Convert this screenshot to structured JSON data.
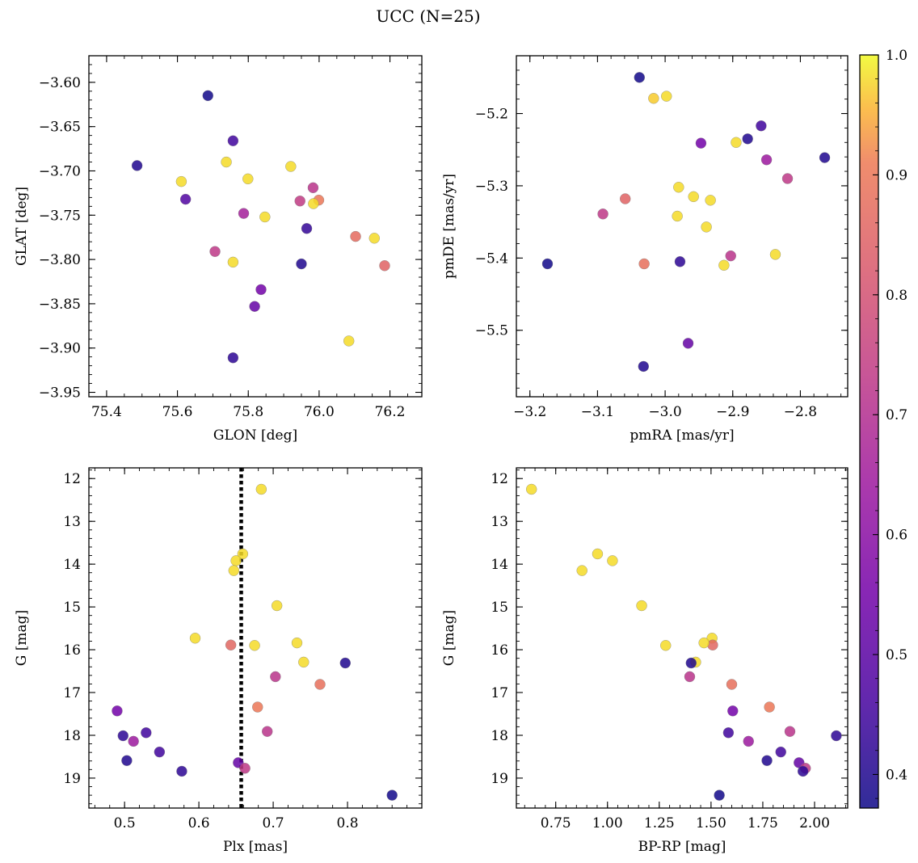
{
  "figure": {
    "title": "UCC (N=25)"
  },
  "colorbar": {
    "range": [
      0.372,
      1.0
    ],
    "ticks": [
      0.4,
      0.5,
      0.6,
      0.7,
      0.8,
      0.9,
      1.0
    ],
    "tick_labels": [
      "0.4",
      "0.5",
      "0.6",
      "0.7",
      "0.8",
      "0.9",
      "1.0"
    ],
    "colormap": "plasma"
  },
  "chart_data": [
    {
      "type": "scatter",
      "xlabel": "GLON [deg]",
      "ylabel": "GLAT [deg]",
      "xlim": [
        75.35,
        76.29
      ],
      "ylim": [
        -3.955,
        -3.57
      ],
      "y_inverted": false,
      "xticks": [
        75.4,
        75.6,
        75.8,
        76.0,
        76.2
      ],
      "xtick_labels": [
        "75.4",
        "75.6",
        "75.8",
        "76.0",
        "76.2"
      ],
      "yticks": [
        -3.6,
        -3.65,
        -3.7,
        -3.75,
        -3.8,
        -3.85,
        -3.9,
        -3.95
      ],
      "ytick_labels": [
        "−3.60",
        "−3.65",
        "−3.70",
        "−3.75",
        "−3.80",
        "−3.85",
        "−3.90",
        "−3.95"
      ],
      "points": [
        {
          "x": 75.686,
          "y": -3.615,
          "c": 0.38
        },
        {
          "x": 75.757,
          "y": -3.666,
          "c": 0.45
        },
        {
          "x": 75.486,
          "y": -3.694,
          "c": 0.4
        },
        {
          "x": 75.738,
          "y": -3.69,
          "c": 0.98
        },
        {
          "x": 75.611,
          "y": -3.712,
          "c": 0.98
        },
        {
          "x": 75.799,
          "y": -3.709,
          "c": 0.98
        },
        {
          "x": 75.92,
          "y": -3.695,
          "c": 0.98
        },
        {
          "x": 75.623,
          "y": -3.732,
          "c": 0.48
        },
        {
          "x": 75.983,
          "y": -3.719,
          "c": 0.72
        },
        {
          "x": 75.946,
          "y": -3.734,
          "c": 0.74
        },
        {
          "x": 75.999,
          "y": -3.733,
          "c": 0.9
        },
        {
          "x": 75.984,
          "y": -3.737,
          "c": 0.98
        },
        {
          "x": 75.787,
          "y": -3.748,
          "c": 0.66
        },
        {
          "x": 75.847,
          "y": -3.752,
          "c": 0.98
        },
        {
          "x": 75.965,
          "y": -3.765,
          "c": 0.43
        },
        {
          "x": 76.103,
          "y": -3.774,
          "c": 0.87
        },
        {
          "x": 76.156,
          "y": -3.776,
          "c": 0.98
        },
        {
          "x": 75.706,
          "y": -3.791,
          "c": 0.73
        },
        {
          "x": 75.757,
          "y": -3.803,
          "c": 0.98
        },
        {
          "x": 75.95,
          "y": -3.805,
          "c": 0.4
        },
        {
          "x": 76.185,
          "y": -3.807,
          "c": 0.85
        },
        {
          "x": 75.836,
          "y": -3.834,
          "c": 0.55
        },
        {
          "x": 75.818,
          "y": -3.853,
          "c": 0.52
        },
        {
          "x": 76.084,
          "y": -3.892,
          "c": 0.98
        },
        {
          "x": 75.757,
          "y": -3.911,
          "c": 0.42
        }
      ]
    },
    {
      "type": "scatter",
      "xlabel": "pmRA [mas/yr]",
      "ylabel": "pmDE [mas/yr]",
      "xlim": [
        -3.22,
        -2.73
      ],
      "ylim": [
        -5.592,
        -5.12
      ],
      "y_inverted": false,
      "xticks": [
        -3.2,
        -3.1,
        -3.0,
        -2.9,
        -2.8
      ],
      "xtick_labels": [
        "−3.2",
        "−3.1",
        "−3.0",
        "−2.9",
        "−2.8"
      ],
      "yticks": [
        -5.2,
        -5.3,
        -5.4,
        -5.5
      ],
      "ytick_labels": [
        "−5.2",
        "−5.3",
        "−5.4",
        "−5.5"
      ],
      "points": [
        {
          "x": -3.038,
          "y": -5.15,
          "c": 0.38
        },
        {
          "x": -3.017,
          "y": -5.179,
          "c": 0.97
        },
        {
          "x": -2.998,
          "y": -5.176,
          "c": 0.98
        },
        {
          "x": -2.858,
          "y": -5.217,
          "c": 0.45
        },
        {
          "x": -2.947,
          "y": -5.241,
          "c": 0.55
        },
        {
          "x": -2.895,
          "y": -5.24,
          "c": 0.98
        },
        {
          "x": -2.878,
          "y": -5.235,
          "c": 0.4
        },
        {
          "x": -2.764,
          "y": -5.261,
          "c": 0.4
        },
        {
          "x": -2.85,
          "y": -5.264,
          "c": 0.64
        },
        {
          "x": -2.819,
          "y": -5.29,
          "c": 0.73
        },
        {
          "x": -2.98,
          "y": -5.302,
          "c": 0.98
        },
        {
          "x": -2.958,
          "y": -5.315,
          "c": 0.98
        },
        {
          "x": -3.059,
          "y": -5.318,
          "c": 0.85
        },
        {
          "x": -2.933,
          "y": -5.32,
          "c": 0.98
        },
        {
          "x": -3.092,
          "y": -5.339,
          "c": 0.73
        },
        {
          "x": -2.982,
          "y": -5.342,
          "c": 0.98
        },
        {
          "x": -2.939,
          "y": -5.357,
          "c": 0.98
        },
        {
          "x": -2.837,
          "y": -5.395,
          "c": 0.98
        },
        {
          "x": -2.903,
          "y": -5.397,
          "c": 0.72
        },
        {
          "x": -2.978,
          "y": -5.405,
          "c": 0.42
        },
        {
          "x": -3.031,
          "y": -5.408,
          "c": 0.88
        },
        {
          "x": -2.913,
          "y": -5.41,
          "c": 0.98
        },
        {
          "x": -3.174,
          "y": -5.408,
          "c": 0.38
        },
        {
          "x": -2.966,
          "y": -5.518,
          "c": 0.52
        },
        {
          "x": -3.032,
          "y": -5.55,
          "c": 0.4
        }
      ]
    },
    {
      "type": "scatter",
      "xlabel": "Plx [mas]",
      "ylabel": "G [mag]",
      "xlim": [
        0.452,
        0.9
      ],
      "ylim": [
        11.75,
        19.7
      ],
      "y_inverted": true,
      "vline": {
        "x": 0.657,
        "style": "dotted"
      },
      "xticks": [
        0.5,
        0.6,
        0.7,
        0.8
      ],
      "xtick_labels": [
        "0.5",
        "0.6",
        "0.7",
        "0.8"
      ],
      "yticks": [
        12,
        13,
        14,
        15,
        16,
        17,
        18,
        19
      ],
      "ytick_labels": [
        "12",
        "13",
        "14",
        "15",
        "16",
        "17",
        "18",
        "19"
      ],
      "points": [
        {
          "x": 0.684,
          "y": 12.25,
          "c": 0.98
        },
        {
          "x": 0.659,
          "y": 13.76,
          "c": 0.98
        },
        {
          "x": 0.65,
          "y": 13.92,
          "c": 0.98
        },
        {
          "x": 0.647,
          "y": 14.15,
          "c": 0.98
        },
        {
          "x": 0.705,
          "y": 14.97,
          "c": 0.98
        },
        {
          "x": 0.595,
          "y": 15.73,
          "c": 0.98
        },
        {
          "x": 0.643,
          "y": 15.89,
          "c": 0.86
        },
        {
          "x": 0.675,
          "y": 15.9,
          "c": 0.98
        },
        {
          "x": 0.732,
          "y": 15.84,
          "c": 0.98
        },
        {
          "x": 0.741,
          "y": 16.29,
          "c": 0.98
        },
        {
          "x": 0.797,
          "y": 16.31,
          "c": 0.4
        },
        {
          "x": 0.703,
          "y": 16.63,
          "c": 0.72
        },
        {
          "x": 0.763,
          "y": 16.81,
          "c": 0.88
        },
        {
          "x": 0.679,
          "y": 17.34,
          "c": 0.9
        },
        {
          "x": 0.49,
          "y": 17.43,
          "c": 0.55
        },
        {
          "x": 0.692,
          "y": 17.91,
          "c": 0.72
        },
        {
          "x": 0.529,
          "y": 17.94,
          "c": 0.45
        },
        {
          "x": 0.498,
          "y": 18.01,
          "c": 0.42
        },
        {
          "x": 0.512,
          "y": 18.14,
          "c": 0.64
        },
        {
          "x": 0.547,
          "y": 18.39,
          "c": 0.45
        },
        {
          "x": 0.503,
          "y": 18.59,
          "c": 0.4
        },
        {
          "x": 0.653,
          "y": 18.64,
          "c": 0.52
        },
        {
          "x": 0.662,
          "y": 18.77,
          "c": 0.73
        },
        {
          "x": 0.577,
          "y": 18.84,
          "c": 0.42
        },
        {
          "x": 0.86,
          "y": 19.4,
          "c": 0.38
        }
      ]
    },
    {
      "type": "scatter",
      "xlabel": "BP-RP [mag]",
      "ylabel": "G [mag]",
      "xlim": [
        0.56,
        2.16
      ],
      "ylim": [
        11.75,
        19.7
      ],
      "y_inverted": true,
      "xticks": [
        0.75,
        1.0,
        1.25,
        1.5,
        1.75,
        2.0
      ],
      "xtick_labels": [
        "0.75",
        "1.00",
        "1.25",
        "1.50",
        "1.75",
        "2.00"
      ],
      "yticks": [
        12,
        13,
        14,
        15,
        16,
        17,
        18,
        19
      ],
      "ytick_labels": [
        "12",
        "13",
        "14",
        "15",
        "16",
        "17",
        "18",
        "19"
      ],
      "points": [
        {
          "x": 0.633,
          "y": 12.25,
          "c": 0.98
        },
        {
          "x": 0.952,
          "y": 13.76,
          "c": 0.98
        },
        {
          "x": 1.024,
          "y": 13.92,
          "c": 0.98
        },
        {
          "x": 0.877,
          "y": 14.15,
          "c": 0.98
        },
        {
          "x": 1.165,
          "y": 14.97,
          "c": 0.98
        },
        {
          "x": 1.505,
          "y": 15.73,
          "c": 0.98
        },
        {
          "x": 1.508,
          "y": 15.89,
          "c": 0.86
        },
        {
          "x": 1.281,
          "y": 15.9,
          "c": 0.98
        },
        {
          "x": 1.466,
          "y": 15.84,
          "c": 0.98
        },
        {
          "x": 1.426,
          "y": 16.29,
          "c": 0.98
        },
        {
          "x": 1.404,
          "y": 16.31,
          "c": 0.4
        },
        {
          "x": 1.397,
          "y": 16.63,
          "c": 0.72
        },
        {
          "x": 1.6,
          "y": 16.81,
          "c": 0.88
        },
        {
          "x": 1.782,
          "y": 17.34,
          "c": 0.9
        },
        {
          "x": 1.605,
          "y": 17.43,
          "c": 0.55
        },
        {
          "x": 1.881,
          "y": 17.91,
          "c": 0.72
        },
        {
          "x": 1.584,
          "y": 17.94,
          "c": 0.45
        },
        {
          "x": 2.105,
          "y": 18.01,
          "c": 0.42
        },
        {
          "x": 1.681,
          "y": 18.14,
          "c": 0.64
        },
        {
          "x": 1.837,
          "y": 18.39,
          "c": 0.45
        },
        {
          "x": 1.77,
          "y": 18.59,
          "c": 0.4
        },
        {
          "x": 1.925,
          "y": 18.64,
          "c": 0.52
        },
        {
          "x": 1.956,
          "y": 18.77,
          "c": 0.73
        },
        {
          "x": 1.944,
          "y": 18.84,
          "c": 0.42
        },
        {
          "x": 1.54,
          "y": 19.4,
          "c": 0.38
        }
      ]
    }
  ]
}
